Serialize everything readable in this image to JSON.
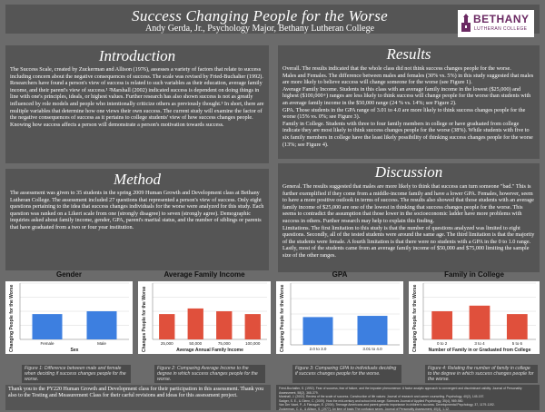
{
  "header": {
    "title": "Success Changing People for the Worse",
    "subtitle": "Andy Gerda, Jr., Psychology Major, Bethany Lutheran College",
    "logo_text": "BETHANY",
    "logo_sub": "LUTHERAN COLLEGE"
  },
  "introduction": {
    "heading": "Introduction",
    "text": "The Success Scale, created by Zuckerman and Allison (1976), assesses a variety of factors that relate to success including concern about the negative consequences of success.  The scale was revised by Fried-Buchalter (1992). Researchers have found a person's view of success is related to such variables as their education, average family income, and their parent's view of success.¹ ²Marshall (2002) indicated success is dependent on doing things in line with one's principles, ideals, or highest values. Further research has also shown success is not as greatly influenced by role models and people who intentionally criticize others as previously thought.³ In short, there are multiple variables that determine how one views their own success. The current study will examine the factor of the negative consequences of success as it pertains to college students' view of how success changes people.  Knowing how success affects a person will demonstrate a person's motivation towards success."
  },
  "method": {
    "heading": "Method",
    "text": "The assessment was given to 35 students in the spring 2009 Human Growth and Development class at Bethany Lutheran College. The assessment included 27 questions that represented a person's view of success. Only eight questions pertaining to the idea that success changes individuals for the worse were analyzed for this study. Each question was ranked on a Likert scale from one (strongly disagree) to seven (strongly agree). Demographic inquiries asked about family income, gender, GPA, parent's marital status, and the number of siblings or parents that have graduated from a two or four year institution."
  },
  "results": {
    "heading": "Results",
    "paragraphs": [
      "Overall.  The results indicated that the whole class did not think success changes people for the worse.",
      "Males and Females. The difference between males and females (30% vs. 5%) in this study suggested that males are more likely to believe success will change someone for the worse (see Figure 1).",
      "Average Family Income. Students in this class with an average family income in the lowest ($25,000) and highest ($100,000+) ranges are less likely to think success will change people for the worse than students with an average family income in the $50,000 range (24 % vs. 14%; see Figure 2).",
      "GPA. Those students in the GPA range of 3.01 to 4.0 are more likely to think success changes people for the worse (15% vs. 0%; see Figure 3).",
      "Family in College. Students with three to four family members in college or have graduated from college indicate they are most likely to think success changes people for the worse (38%). While students with five to six family members in college have the least likely possibility of thinking success changes people for the worse (13%; see Figure 4)."
    ]
  },
  "discussion": {
    "heading": "Discussion",
    "paragraphs": [
      "General. The results suggested that males are more likely to think that success can turn someone \"bad.\" This is further exemplified if they come from a middle-income family and have a lower GPA. Females, however, seem to have a more positive outlook in terms of success. The results also showed that those students with an average family income of $25,000 are one of the lowest in thinking that success changes people for the worse. This seems to contradict the assumption that those lower in the socioeconomic ladder have more problems with success in others. Further research may help to explain this finding.",
      "Limitations. The first limitation to this study is that the number of questions analyzed was limited to eight questions. Secondly, all of the tested students were around the same age. The third limitation is that the majority of the students were female. A fourth limitation is that there were no students with a GPA in the 0 to 1.0 range. Lastly, most of the students came from an average family income of $50,000 and $75,000 limiting the sample size of the other ranges."
    ]
  },
  "charts": {
    "gender": {
      "title": "Gender",
      "ylabel": "Changing People for the Worse",
      "xlabel": "Sex",
      "caption": "Figure 1: Difference between male and female when deciding if success changes people for the worse."
    },
    "income": {
      "title": "Average Family Income",
      "ylabel": "Changes People for the Worse",
      "xlabel": "Average Annual Family Income",
      "caption": "Figure 2: Comparing Average Income to the degree in which success changes people for the worse."
    },
    "gpa": {
      "title": "GPA",
      "ylabel": "Changing People for the Worse",
      "caption": "Figure 3: Comparing GPA to individuals deciding if success changes people for the worse."
    },
    "family": {
      "title": "Family in College",
      "ylabel": "Changing People for the Worse",
      "xlabel": "Number of Family in or Graduated from College",
      "caption": "Figure 4: Relating the number of family in college to the degree in which success changes people for the worse."
    }
  },
  "chart_data": [
    {
      "type": "bar",
      "title": "Gender",
      "xlabel": "Sex",
      "ylabel": "Changing People for the Worse",
      "categories": [
        "Female",
        "Male"
      ],
      "values": [
        0.45,
        0.5
      ],
      "color": "#3d7fe0"
    },
    {
      "type": "bar",
      "title": "Average Family Income",
      "xlabel": "Average Annual Family Income",
      "ylabel": "Changes People for the Worse",
      "categories": [
        "25,000",
        "50,000",
        "75,000",
        "100,000"
      ],
      "values": [
        0.45,
        0.55,
        0.5,
        0.45
      ],
      "color": "#e0503c"
    },
    {
      "type": "bar",
      "title": "GPA",
      "xlabel": "",
      "ylabel": "Changing People for the Worse",
      "categories": [
        "2.0 to 3.0",
        "3.01 to 4.0"
      ],
      "values": [
        0.45,
        0.47
      ],
      "color": "#3d7fe0"
    },
    {
      "type": "bar",
      "title": "Family in College",
      "xlabel": "Number of Family in or Graduated from College",
      "ylabel": "Changing People for the Worse",
      "categories": [
        "0 to 2",
        "3 to 4",
        "5 to 6"
      ],
      "values": [
        0.5,
        0.6,
        0.45
      ],
      "color": "#e0503c"
    }
  ],
  "acknowledgements": "Thank you to the PY220 Human Growth and Development class for their participation in this assessment. Thank you also to the Testing and Measurement Class for their carful revisions and ideas for this assessment project.",
  "references": [
    "Fried-Buchalter, S. (1992). Fear of success, fear of failure, and the imposter phenomenon: A factor analytic approach to convergent and discriminant validity. Journal of Personality Assessment, 58(2), 368-379.",
    "Marshall, J. (2002). Review of the scale of success. Construction of life values: Journal of research and career counseling. Psychology, 40(2), 145-157.",
    "Sadger, S. E., & Glenn, C. (2009). How the mid-century and school mid-range. Sciences Journal of Applied Psychology, 35(4), 969-980.",
    "Van Der Vaart, P., & Flanagan, E. (2004). Teenage Americans and parent genetic importance in children's success. Developmental Psychology, 37, 1179-1192.",
    "Zuckerman, C. A., & Allison, S. (1977). An item of basis The confusion sexes. Journal of Personality Assessment, 40(4), 1-12."
  ]
}
